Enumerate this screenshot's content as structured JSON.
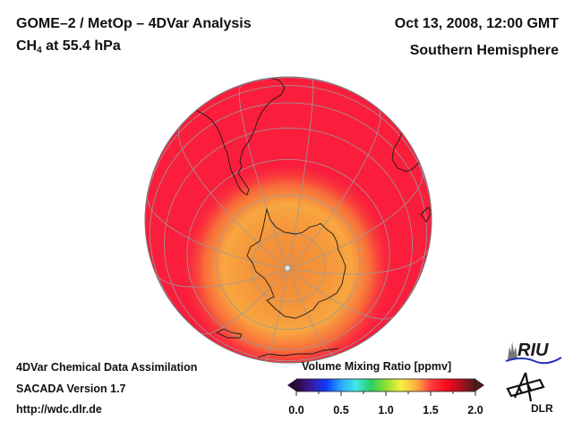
{
  "header": {
    "title_line1": "GOME–2 / MetOp – 4DVar Analysis",
    "species": "CH",
    "species_subscript": "4",
    "level_text": " at 55.4 hPa",
    "date": "Oct 13, 2008, 12:00 GMT",
    "region": "Southern Hemisphere"
  },
  "footer": {
    "line1": "4DVar Chemical Data Assimilation",
    "line2": "SACADA Version 1.7",
    "line3": "http://wdc.dlr.de"
  },
  "colorbar": {
    "title": "Volume Mixing Ratio [ppmv]",
    "min": 0.0,
    "max": 2.0,
    "ticks": [
      "0.0",
      "0.5",
      "1.0",
      "1.5",
      "2.0"
    ],
    "extend": "both",
    "colors": [
      "#2a0a3a",
      "#3a1aa0",
      "#0a3cff",
      "#2aa8ff",
      "#3fe8e8",
      "#2ad060",
      "#8ee030",
      "#f5f040",
      "#ffb040",
      "#ff4040",
      "#ff0a20",
      "#b01020",
      "#4a1a1a"
    ]
  },
  "map": {
    "projection": "orthographic",
    "hemisphere": "south",
    "field": "CH4 volume mixing ratio",
    "background_value_ppmv": 1.75,
    "polar_value_ppmv": 1.3,
    "colors": {
      "background": "#fa1e3c",
      "mid": "#f85a3a",
      "polar": "#f8a640",
      "polar_core": "#f08a38",
      "grid": "#9a9a9a",
      "coast": "#1a1a1a"
    }
  },
  "logos": {
    "riu": "RIU",
    "dlr": "DLR"
  }
}
